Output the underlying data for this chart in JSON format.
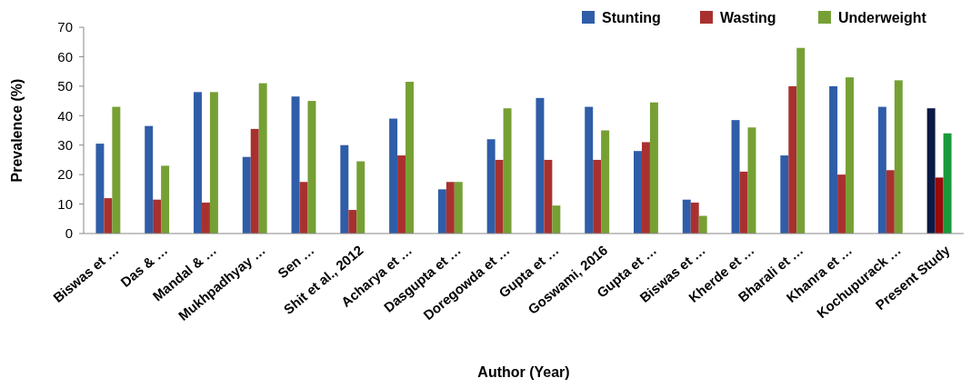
{
  "chart_data": {
    "type": "bar",
    "xlabel": "Author (Year)",
    "ylabel": "Prevalence (%)",
    "categories": [
      "Biswas et …",
      "Das & …",
      "Mandal & …",
      "Mukhpadhyay …",
      "Sen …",
      "Shit et al., 2012",
      "Acharya et …",
      "Dasgupta et …",
      "Doregowda et …",
      "Gupta et …",
      "Goswami, 2016",
      "Gupta et …",
      "Biswas et …",
      "Kherde et …",
      "Bharali et …",
      "Khanra et …",
      "Kochupurack …",
      "Present Study"
    ],
    "series": [
      {
        "name": "Stunting",
        "color": "#2f5da8",
        "colors": [
          "#2f5da8",
          "#2f5da8",
          "#2f5da8",
          "#2f5da8",
          "#2f5da8",
          "#2f5da8",
          "#2f5da8",
          "#2f5da8",
          "#2f5da8",
          "#2f5da8",
          "#2f5da8",
          "#2f5da8",
          "#2f5da8",
          "#2f5da8",
          "#2f5da8",
          "#2f5da8",
          "#2f5da8",
          "#0b1a45"
        ],
        "values": [
          30.5,
          36.5,
          48,
          26,
          46.5,
          30,
          39,
          15,
          32,
          46,
          43,
          28,
          11.5,
          38.5,
          26.5,
          50,
          43,
          42.5
        ]
      },
      {
        "name": "Wasting",
        "color": "#a8312f",
        "colors": [
          "#a8312f",
          "#a8312f",
          "#a8312f",
          "#a8312f",
          "#a8312f",
          "#a8312f",
          "#a8312f",
          "#a8312f",
          "#a8312f",
          "#a8312f",
          "#a8312f",
          "#a8312f",
          "#a8312f",
          "#a8312f",
          "#a8312f",
          "#a8312f",
          "#a8312f",
          "#9a0a0a"
        ],
        "values": [
          12,
          11.5,
          10.5,
          35.5,
          17.5,
          8,
          26.5,
          17.5,
          25,
          25,
          25,
          31,
          10.5,
          21,
          50,
          20,
          21.5,
          19
        ]
      },
      {
        "name": "Underweight",
        "color": "#76a034",
        "colors": [
          "#76a034",
          "#76a034",
          "#76a034",
          "#76a034",
          "#76a034",
          "#76a034",
          "#76a034",
          "#76a034",
          "#76a034",
          "#76a034",
          "#76a034",
          "#76a034",
          "#76a034",
          "#76a034",
          "#76a034",
          "#76a034",
          "#76a034",
          "#1a9a3a"
        ],
        "values": [
          43,
          23,
          48,
          51,
          45,
          24.5,
          51.5,
          17.5,
          42.5,
          9.5,
          35,
          44.5,
          6,
          36,
          63,
          53,
          52,
          34
        ]
      }
    ],
    "ylim": [
      0,
      70
    ],
    "yticks": [
      0,
      10,
      20,
      30,
      40,
      50,
      60,
      70
    ],
    "grid": false,
    "legend": "top right"
  }
}
